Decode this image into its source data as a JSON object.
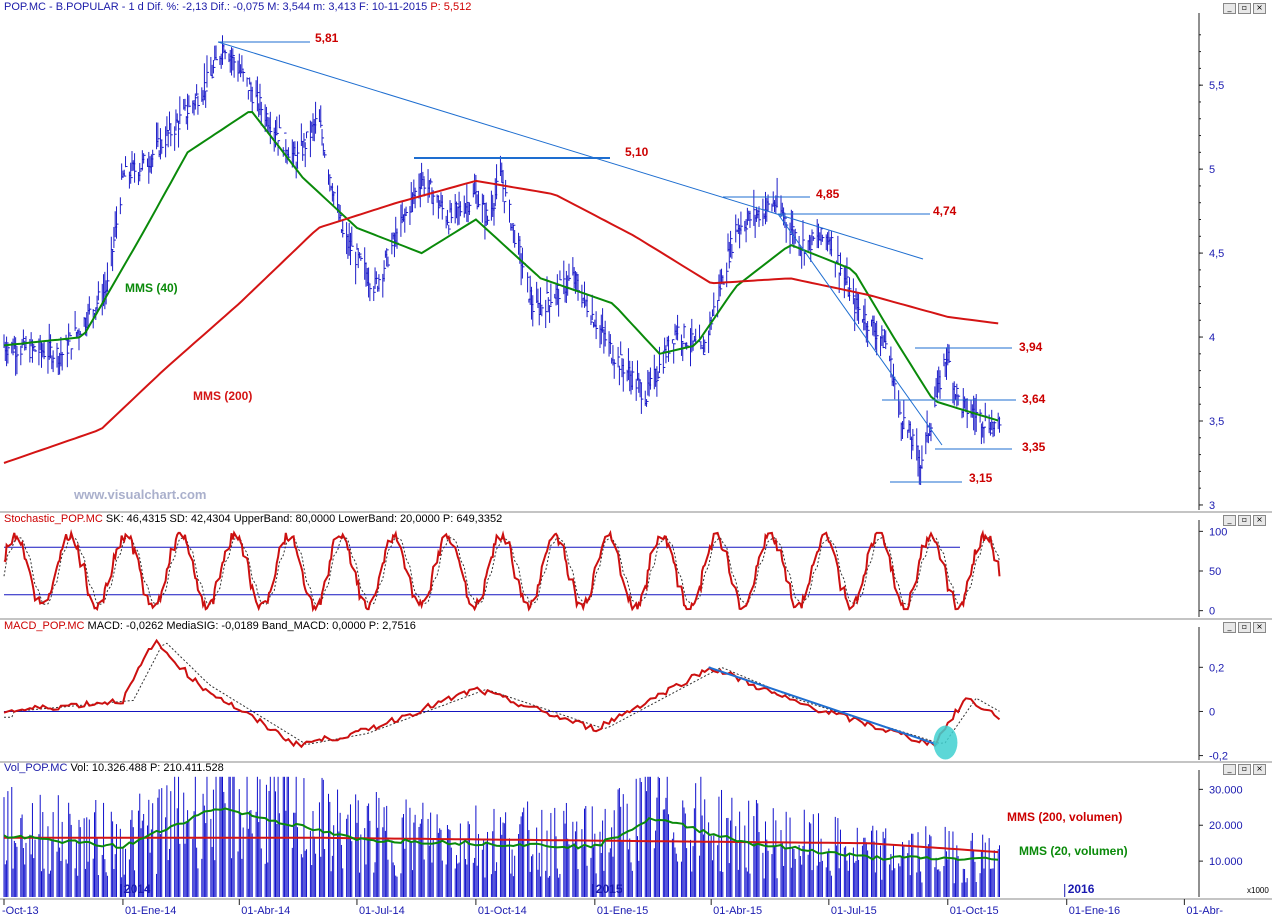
{
  "colors": {
    "price": "#1c1cc8",
    "mms40": "#0a8a0a",
    "mms200": "#d41414",
    "label": "#cc0000",
    "axis": "#1a1ab0",
    "stochastic": "#cc1010",
    "macd": "#cc1010",
    "volume": "#1010cc",
    "trend": "#1e6ed0",
    "highlight": "#40d0d0"
  },
  "watermark": "www.visualchart.com",
  "icons": {
    "minimize": "minimize-icon",
    "restore": "restore-icon",
    "close": "close-icon"
  },
  "panels": {
    "price": {
      "header_name": "POP.MC - B.POPULAR - 1 d Dif. %: -2,13 Dif.: -0,075 M: 3,544 m: 3,413 F: 10-11-2015",
      "header_p": "P: 5,512",
      "y_ticks": [
        "5,5",
        "5",
        "4,5",
        "4",
        "3,5",
        "3"
      ]
    },
    "stochastic": {
      "header_name": "Stochastic_POP.MC",
      "header_vals": " SK: 46,4315 SD: 42,4304 UpperBand: 80,0000 LowerBand: 20,0000",
      "header_p": " P: 649,3352",
      "y_ticks": [
        "100",
        "50",
        "0"
      ]
    },
    "macd": {
      "header_name": "MACD_POP.MC",
      "header_vals": " MACD: -0,0262 MediaSIG: -0,0189 Band_MACD: 0,0000",
      "header_p": " P: 2,7516",
      "y_ticks": [
        "0,2",
        "0",
        "-0,2"
      ]
    },
    "volume": {
      "header_name": "Vol_POP.MC",
      "header_vals": " Vol: 10.326.488",
      "header_p": " P: 210.411.528",
      "y_ticks": [
        "30.000",
        "20.000",
        "10.000"
      ],
      "scale_note": "x1000",
      "year_labels": [
        "2014",
        "2015",
        "2016"
      ]
    }
  },
  "x_axis": {
    "labels": [
      "-Oct-13",
      "01-Ene-14",
      "01-Abr-14",
      "01-Jul-14",
      "01-Oct-14",
      "01-Ene-15",
      "01-Abr-15",
      "01-Jul-15",
      "01-Oct-15",
      "01-Ene-16",
      "01-Abr-"
    ]
  },
  "chart_data": [
    {
      "type": "line",
      "panel": "price",
      "title": "",
      "ylim": [
        2.97,
        5.9
      ],
      "x_domain": [
        "2013-10-01",
        "2016-04-10"
      ],
      "series": [
        {
          "name": "",
          "style": "bars",
          "x": [
            "2013-10-01",
            "2013-11-15",
            "2013-12-20",
            "2014-01-01",
            "2014-01-20",
            "2014-02-20",
            "2014-03-10",
            "2014-03-20",
            "2014-04-15",
            "2014-05-15",
            "2014-06-01",
            "2014-06-20",
            "2014-07-15",
            "2014-08-20",
            "2014-09-10",
            "2014-10-01",
            "2014-10-10",
            "2014-10-20",
            "2014-11-15",
            "2014-12-15",
            "2015-01-15",
            "2015-02-10",
            "2015-03-05",
            "2015-03-25",
            "2015-04-20",
            "2015-05-20",
            "2015-06-10",
            "2015-07-01",
            "2015-07-20",
            "2015-08-15",
            "2015-08-25",
            "2015-09-10",
            "2015-09-30",
            "2015-10-10",
            "2015-11-10"
          ],
          "y": [
            3.95,
            3.9,
            4.3,
            4.95,
            5.05,
            5.35,
            5.55,
            5.75,
            5.4,
            5.05,
            5.3,
            4.6,
            4.3,
            4.95,
            4.7,
            4.85,
            4.7,
            4.95,
            4.15,
            4.35,
            3.9,
            3.65,
            4.05,
            3.9,
            4.65,
            4.8,
            4.55,
            4.6,
            4.2,
            3.95,
            3.55,
            3.25,
            3.9,
            3.6,
            3.45
          ]
        },
        {
          "name": "MMS (40)",
          "style": "line",
          "x": [
            "2013-10-01",
            "2013-12-01",
            "2014-01-15",
            "2014-02-20",
            "2014-04-10",
            "2014-05-20",
            "2014-07-01",
            "2014-08-20",
            "2014-10-01",
            "2014-11-20",
            "2015-01-15",
            "2015-02-20",
            "2015-03-20",
            "2015-04-20",
            "2015-06-01",
            "2015-07-20",
            "2015-08-20",
            "2015-09-20",
            "2015-11-10"
          ],
          "y": [
            3.95,
            4.0,
            4.6,
            5.1,
            5.35,
            4.95,
            4.65,
            4.5,
            4.7,
            4.35,
            4.2,
            3.9,
            3.95,
            4.3,
            4.55,
            4.4,
            4.0,
            3.62,
            3.5
          ]
        },
        {
          "name": "MMS (200)",
          "style": "line",
          "x": [
            "2013-10-01",
            "2013-12-15",
            "2014-02-01",
            "2014-04-01",
            "2014-06-01",
            "2014-08-01",
            "2014-10-01",
            "2014-12-01",
            "2015-02-01",
            "2015-04-01",
            "2015-06-01",
            "2015-08-01",
            "2015-10-01",
            "2015-11-10"
          ],
          "y": [
            3.25,
            3.45,
            3.8,
            4.2,
            4.65,
            4.8,
            4.93,
            4.85,
            4.6,
            4.32,
            4.35,
            4.25,
            4.12,
            4.08
          ]
        }
      ],
      "annotations": [
        "5,81",
        "5,10",
        "4,85",
        "4,74",
        "3,94",
        "3,64",
        "3,35",
        "3,15"
      ]
    },
    {
      "type": "line",
      "panel": "stochastic",
      "title": "",
      "ylim": [
        -8,
        108
      ],
      "bands": [
        20,
        80
      ],
      "series": [
        {
          "name": "SK",
          "x": [
            "2013-10-01",
            "2014-01-01",
            "2014-04-01",
            "2014-07-01",
            "2014-10-01",
            "2015-01-01",
            "2015-04-01",
            "2015-07-01",
            "2015-09-20",
            "2015-10-10",
            "2015-11-10"
          ],
          "y": [
            50,
            85,
            40,
            15,
            75,
            20,
            95,
            35,
            10,
            95,
            46.43
          ]
        },
        {
          "name": "SD",
          "x": [
            "2013-10-01",
            "2015-11-10"
          ],
          "y": [
            50,
            42.43
          ]
        }
      ]
    },
    {
      "type": "line",
      "panel": "macd",
      "title": "",
      "ylim": [
        -0.22,
        0.36
      ],
      "series": [
        {
          "name": "MACD",
          "x": [
            "2013-10-01",
            "2014-01-01",
            "2014-01-25",
            "2014-03-01",
            "2014-05-15",
            "2014-07-01",
            "2014-10-01",
            "2015-01-01",
            "2015-04-01",
            "2015-06-01",
            "2015-09-20",
            "2015-10-15",
            "2015-11-10"
          ],
          "y": [
            0,
            0.05,
            0.32,
            0.12,
            -0.15,
            -0.1,
            0.1,
            -0.08,
            0.2,
            0.05,
            -0.15,
            0.06,
            -0.026
          ]
        },
        {
          "name": "MediaSIG",
          "x": [
            "2013-10-01",
            "2015-11-10"
          ],
          "y": [
            0,
            -0.019
          ]
        }
      ],
      "trend_line": {
        "x": [
          "2015-03-30",
          "2015-09-23"
        ],
        "y": [
          0.2,
          -0.15
        ]
      }
    },
    {
      "type": "bar",
      "panel": "volume",
      "title": "",
      "ylim": [
        0,
        34000
      ],
      "unit": "x1000",
      "series": [
        {
          "name": "MMS (200, volumen)",
          "x": [
            "2013-10-01",
            "2014-06-01",
            "2015-03-01",
            "2015-08-01",
            "2015-11-10"
          ],
          "y": [
            16500,
            16500,
            15500,
            15000,
            12500
          ]
        },
        {
          "name": "MMS (20, volumen)",
          "x": [
            "2013-10-01",
            "2014-01-01",
            "2014-03-15",
            "2014-07-01",
            "2014-10-01",
            "2015-01-01",
            "2015-02-15",
            "2015-05-01",
            "2015-08-01",
            "2015-11-10"
          ],
          "y": [
            17000,
            14000,
            25000,
            16000,
            15000,
            14000,
            22000,
            15000,
            11000,
            10500
          ]
        }
      ]
    }
  ],
  "legend": {
    "mms40": "MMS (40)",
    "mms200": "MMS (200)",
    "vol200": "MMS (200, volumen)",
    "vol20": "MMS (20, volumen)"
  }
}
